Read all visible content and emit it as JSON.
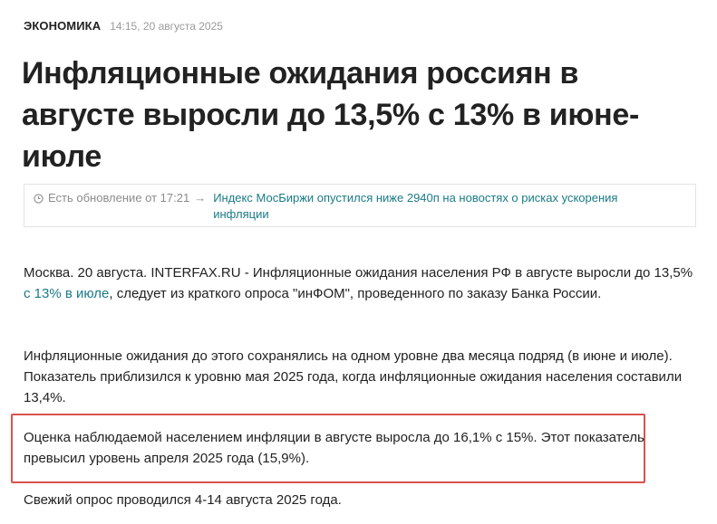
{
  "article": {
    "rubric": "ЭКОНОМИКА",
    "datetime": "14:15, 20 августа 2025",
    "headline": "Инфляционные ожидания россиян в августе выросли до 13,5% с 13% в июне-июле"
  },
  "update": {
    "label": "Есть обновление от 17:21",
    "arrow": "→",
    "link_text": "Индекс МосБиржи опустился ниже 2940п на новостях о рисках ускорения инфляции"
  },
  "body": {
    "p1_before": "Москва. 20 августа. INTERFAX.RU - Инфляционные ожидания населения РФ в августе выросли до 13,5% ",
    "p1_link": "с 13% в июле",
    "p1_after": ", следует из краткого опроса \"инФОМ\", проведенного по заказу Банка России.",
    "p2": "Инфляционные ожидания до этого сохранялись на одном уровне два месяца подряд (в июне и июле). Показатель приблизился к уровню мая 2025 года, когда инфляционные ожидания населения составили 13,4%.",
    "p3": "Оценка наблюдаемой населением инфляции в августе выросла до 16,1% с 15%. Этот показатель превысил уровень апреля 2025 года (15,9%).",
    "p4": "Свежий опрос проводился 4-14 августа 2025 года."
  },
  "colors": {
    "link": "#1a7a86",
    "highlight_border": "#d9534f",
    "muted": "#9a9a9a"
  },
  "icons": {
    "update": "clock-icon"
  }
}
